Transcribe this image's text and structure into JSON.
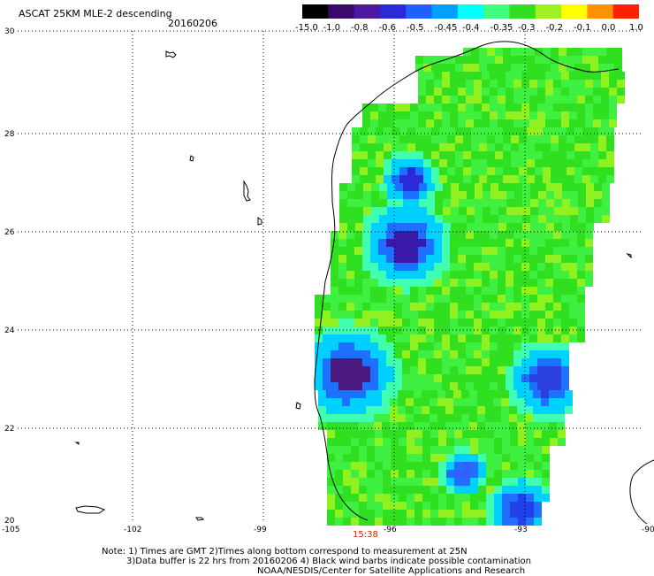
{
  "header": {
    "title": "ASCAT 25KM MLE-2 descending",
    "date": "20160206"
  },
  "colorbar": {
    "labels": [
      "-15.0",
      "-1.0",
      "-0.8",
      "-0.6",
      "-0.5",
      "-0.45",
      "-0.4",
      "-0.35",
      "-0.3",
      "-0.2",
      "-0.1",
      "0.0",
      "1.0"
    ],
    "colors": [
      "#000000",
      "#3a0a6a",
      "#4a1aa0",
      "#2a2ad8",
      "#2060ff",
      "#00a0ff",
      "#00ffff",
      "#40ff80",
      "#30e020",
      "#a0f020",
      "#ffff00",
      "#ff9000",
      "#ff2000"
    ]
  },
  "axes": {
    "lat_labels": [
      "30",
      "28",
      "26",
      "24",
      "22",
      "20"
    ],
    "lon_labels": [
      "-105",
      "-102",
      "-99",
      "-96",
      "-93",
      "-90"
    ]
  },
  "map": {
    "region": "Gulf of Mexico (western)",
    "field": "MLE-2 (maximum likelihood estimate)",
    "land_color": "#ffffff",
    "coastline_color": "#000000"
  },
  "time_label": "15:38",
  "notes": {
    "line1": "Note: 1) Times are GMT 2)Times along bottom correspond to measurement at 25N",
    "line2": "3)Data buffer is 22 hrs from 20160206 4) Black wind barbs indicate possible contamination",
    "line3": "NOAA/NESDIS/Center for Satellite Applications and Research"
  }
}
